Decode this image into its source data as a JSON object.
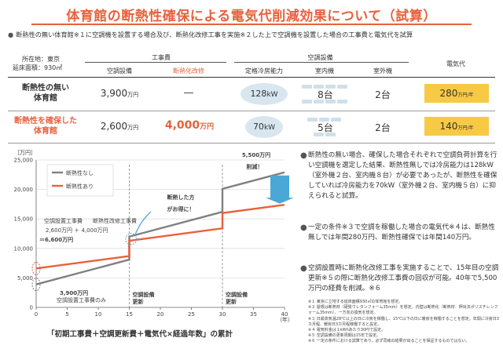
{
  "title": "体育館の断熱性確保による電気代削減効果について（試算）",
  "intro": {
    "bullet": "●",
    "text": "断熱性の無い体育館※１に空調機を設置する場合及び、断熱化改修工事を実施※２した上で空調機を設置した場合の工事費と電気代を試算"
  },
  "location": {
    "line1": "所在地：東京",
    "line2": "延床面積：930㎡"
  },
  "table": {
    "groups": {
      "construction": "工事費",
      "aircon": "空調設備",
      "electricity": "電気代"
    },
    "columns": {
      "install": "空調設備",
      "insulation": "断熱化改修",
      "capacity": "定格冷房能力",
      "indoor": "室内機",
      "outdoor": "室外機"
    },
    "rows": [
      {
        "label_line1": "断熱性の無い",
        "label_line2": "体育館",
        "install_value": "3,900",
        "install_unit": "万円",
        "insulation_value": "―",
        "capacity_value": "128",
        "capacity_unit": "kW",
        "indoor_value": "8台",
        "outdoor_value": "2台",
        "electricity_value": "280",
        "electricity_unit": "万円/年"
      },
      {
        "label_line1": "断熱性を確保した",
        "label_line2": "体育館",
        "install_value": "2,600",
        "install_unit": "万円",
        "insulation_value": "4,000",
        "insulation_unit": "万円",
        "capacity_value": "70",
        "capacity_unit": "kW",
        "indoor_value": "5台",
        "outdoor_value": "2台",
        "electricity_value": "140",
        "electricity_unit": "万円/年"
      }
    ]
  },
  "chart_data": {
    "type": "line",
    "ylabel": "［万円］",
    "xlabel": "（年）",
    "xlim": [
      0,
      40
    ],
    "ylim": [
      0,
      25000
    ],
    "x_ticks": [
      0,
      5,
      10,
      15,
      20,
      25,
      30,
      35,
      40
    ],
    "y_ticks": [
      "0",
      "5,000",
      "10,000",
      "15,000",
      "20,000",
      "25,000"
    ],
    "series": [
      {
        "name": "断熱性なし",
        "color": "#808080",
        "x": [
          0,
          15,
          15,
          30,
          30,
          40
        ],
        "y": [
          3900,
          8100,
          12000,
          16200,
          20100,
          22900
        ]
      },
      {
        "name": "断熱性あり",
        "color": "#e8613c",
        "x": [
          0,
          15,
          15,
          30,
          30,
          40
        ],
        "y": [
          6600,
          8700,
          11300,
          13400,
          16000,
          17400
        ]
      }
    ],
    "annotations": {
      "saving": "5,500万円",
      "saving_sub": "削減！",
      "callout_line1": "断熱した方",
      "callout_line2": "がお得に！",
      "update_label_line1": "空調設備",
      "update_label_line2": "更新",
      "left_orange_label": "空調設置工事費",
      "left_orange_label2": "断熱性改修工事費",
      "left_orange_sum": "2,600万円 ＋ 4,000万円",
      "left_orange_total": "＝6,600万円",
      "left_gray_value": "3,900万円",
      "left_gray_label": "空調設置工事費のみ"
    },
    "caption": "「初期工事費＋空調更新費＋電気代×経過年数」の累計"
  },
  "explanations": [
    {
      "bullet": "●",
      "text": "断熱性の無い場合、確保した場合それぞれで空調負荷計算を行い空調機を選定した結果、断熱性無しでは冷房能力は128kW（室外機２台、室内機８台）が必要であったが、断熱性を確保していれば冷房能力を70kW（室外機２台、室内機５台）に抑えられると試算。"
    },
    {
      "bullet": "●",
      "text": "一定の条件※３で空調を稼働した場合の電気代※４は、断熱性無しでは年間280万円、断熱性確保では年間140万円。"
    },
    {
      "bullet": "●",
      "text": "空調設置時に断熱化改修工事を実施することで、15年目の空調更新※５の際に断熱化改修工事費の回収が可能。40年で5,500万円の経費を削減。※６"
    }
  ],
  "notes": [
    "※１ 東京に立地する延床面積930㎡の体育館を想定。",
    "※２ 屋根は断熱材（硬質ウレタンフォーム35mm）を想定。内壁は断熱化（断熱材：押出法ポリスチレンフォーム35mm）、一方向の換気を想定。",
    "※３ 日最高気温28℃以上の日に冷房を稼働し、15℃以下の日に暖房を稼働することを想定。年間に冷房日3カ月程、暖房日3カ月程稼働すると設定。",
    "※４ 電気料金は１kWhあたり30円で設定。",
    "※５ 空調設備の更新周期は15年で設定。",
    "※６ 一定の条件における試算であり、必ず同様の結果が出ることを保証するものではない。"
  ]
}
